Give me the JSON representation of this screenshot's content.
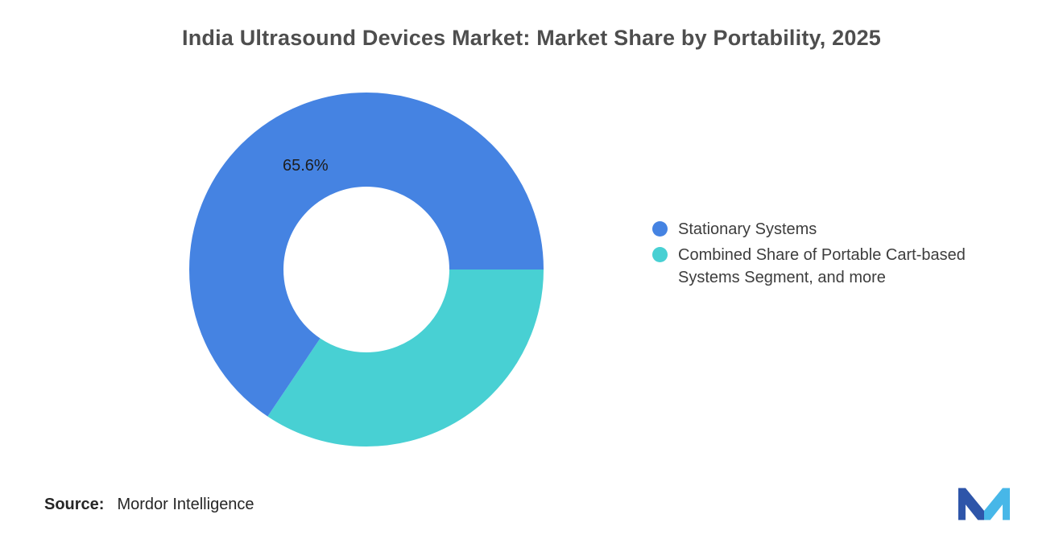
{
  "title": "India Ultrasound Devices Market: Market Share by Portability, 2025",
  "chart_data": {
    "type": "pie",
    "subtype": "donut",
    "title": "India Ultrasound Devices Market: Market Share by Portability, 2025",
    "categories": [
      "Stationary Systems",
      "Combined Share of Portable Cart-based Systems Segment, and more"
    ],
    "values": [
      65.6,
      34.4
    ],
    "unit": "%",
    "colors": [
      "#4583E2",
      "#48D0D3"
    ],
    "data_labels": [
      "65.6%",
      ""
    ],
    "start_angle_deg": 90,
    "direction": "clockwise",
    "draw_order": [
      1,
      0
    ],
    "legend_position": "right",
    "donut_hole_ratio": 0.47,
    "background": "#FFFFFF"
  },
  "legend": {
    "items": [
      {
        "label": "Stationary Systems",
        "color": "#4583E2"
      },
      {
        "label": "Combined Share of Portable Cart-based Systems Segment, and more",
        "color": "#48D0D3"
      }
    ]
  },
  "source": {
    "label": "Source:",
    "text": "Mordor Intelligence"
  },
  "logo": {
    "name": "Mordor Intelligence logo",
    "colors": [
      "#2E55A9",
      "#47B7E8"
    ]
  }
}
